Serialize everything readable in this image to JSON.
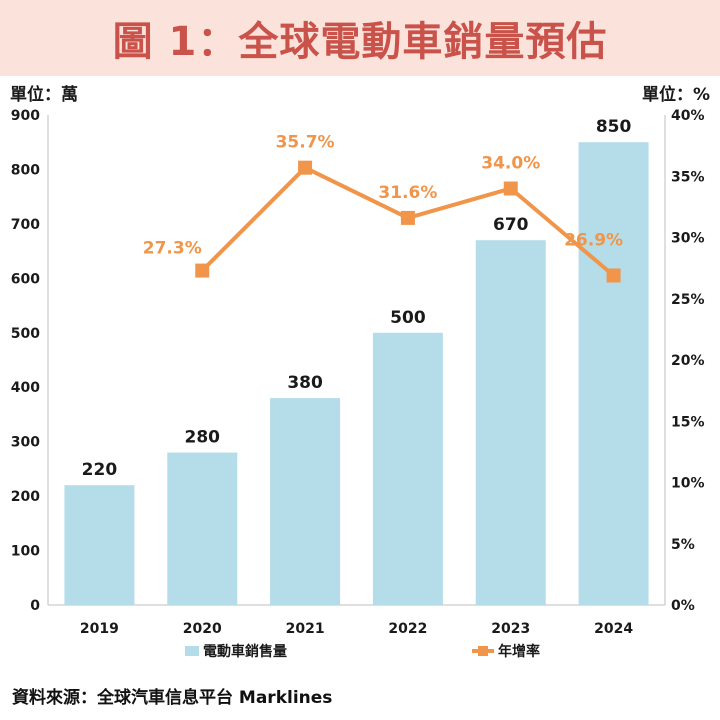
{
  "title": "圖 1：全球電動車銷量預估",
  "unit_left": "單位：萬",
  "unit_right": "單位：%",
  "source": "資料來源：全球汽車信息平台 Marklines",
  "colors": {
    "bar": "#b5dde9",
    "line": "#f0954a",
    "title": "#c9524a",
    "banner": "#fbe3dc"
  },
  "chart_data": {
    "type": "bar",
    "categories": [
      "2019",
      "2020",
      "2021",
      "2022",
      "2023",
      "2024"
    ],
    "series": [
      {
        "name": "電動車銷售量",
        "type": "bar",
        "axis": "left",
        "values": [
          220,
          280,
          380,
          500,
          670,
          850
        ],
        "labels": [
          "220",
          "280",
          "380",
          "500",
          "670",
          "850"
        ]
      },
      {
        "name": "年增率",
        "type": "line",
        "axis": "right",
        "values": [
          null,
          27.3,
          35.7,
          31.6,
          34.0,
          26.9
        ],
        "labels": [
          "",
          "27.3%",
          "35.7%",
          "31.6%",
          "34.0%",
          "26.9%"
        ]
      }
    ],
    "y_left": {
      "min": 0,
      "max": 900,
      "ticks": [
        "0",
        "100",
        "200",
        "300",
        "400",
        "500",
        "600",
        "700",
        "800",
        "900"
      ]
    },
    "y_right": {
      "min": 0,
      "max": 40,
      "ticks": [
        "0%",
        "5%",
        "10%",
        "15%",
        "20%",
        "25%",
        "30%",
        "35%",
        "40%"
      ]
    },
    "legend_position": "bottom",
    "grid": false
  }
}
